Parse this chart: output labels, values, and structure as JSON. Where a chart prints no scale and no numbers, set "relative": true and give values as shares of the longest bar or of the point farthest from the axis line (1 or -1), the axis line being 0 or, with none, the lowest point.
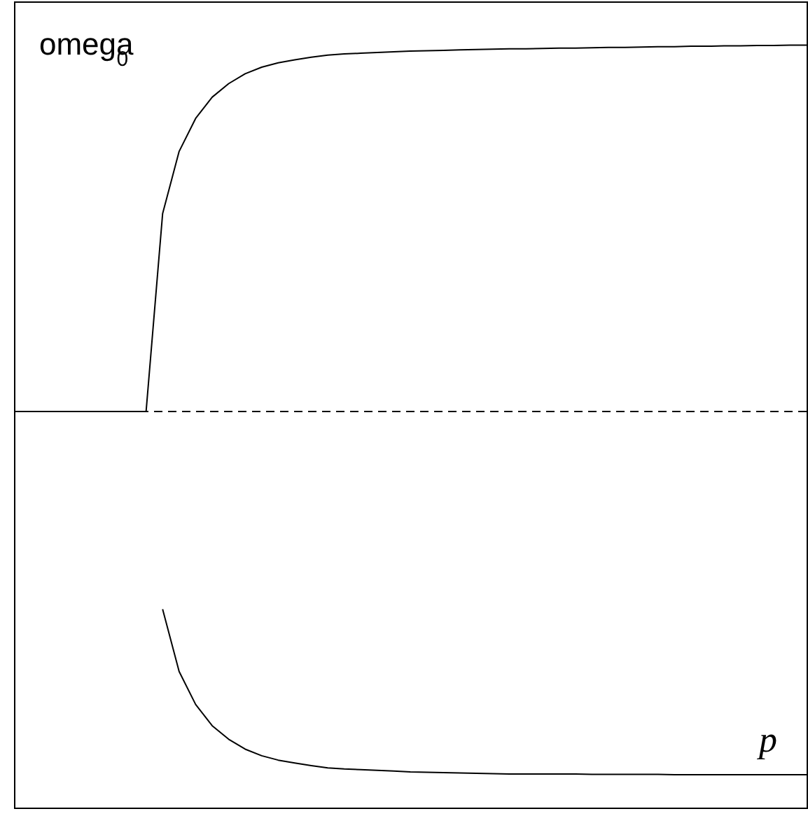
{
  "chart_data": {
    "type": "line",
    "relative": true,
    "xlabel": "p",
    "ylabel": "omega$_{0}$",
    "ref_lines": [
      {
        "axis": "y",
        "value": 0,
        "line_style": "dashed",
        "color": "#000000"
      }
    ],
    "categories": [
      null,
      null,
      null,
      null,
      null,
      null,
      null,
      null,
      null,
      null,
      null,
      null,
      null,
      null,
      null,
      null,
      null,
      null,
      null,
      null,
      null,
      null,
      null,
      null,
      null,
      null,
      null,
      null,
      null,
      null,
      null,
      null,
      null,
      null,
      null,
      null,
      null,
      null,
      null,
      null,
      null,
      null,
      null,
      null,
      null,
      null,
      null,
      null,
      null
    ],
    "series": [
      {
        "color": "#000000",
        "values": [
          0,
          0,
          0,
          0,
          0,
          0,
          0,
          0,
          0,
          null,
          null,
          null,
          null,
          null,
          null,
          null,
          null,
          null,
          null,
          null,
          null,
          null,
          null,
          null,
          null,
          null,
          null,
          null,
          null,
          null,
          null,
          null,
          null,
          null,
          null,
          null,
          null,
          null,
          null,
          null,
          null,
          null,
          null,
          null,
          null,
          null,
          null,
          null,
          null
        ]
      },
      {
        "color": "#000000",
        "values": [
          null,
          null,
          null,
          null,
          null,
          null,
          null,
          null,
          0,
          0.54,
          0.71,
          0.8,
          0.858,
          0.895,
          0.922,
          0.94,
          0.952,
          0.96,
          0.967,
          0.973,
          0.976,
          0.978,
          0.98,
          0.982,
          0.984,
          0.985,
          0.986,
          0.987,
          0.988,
          0.989,
          0.99,
          0.99,
          0.991,
          0.992,
          0.992,
          0.993,
          0.994,
          0.994,
          0.995,
          0.996,
          0.996,
          0.997,
          0.997,
          0.998,
          0.998,
          0.999,
          0.999,
          1,
          1
        ]
      },
      {
        "color": "#000000",
        "values": [
          null,
          null,
          null,
          null,
          null,
          null,
          null,
          null,
          null,
          -0.54,
          -0.71,
          -0.8,
          -0.858,
          -0.895,
          -0.922,
          -0.94,
          -0.952,
          -0.96,
          -0.967,
          -0.973,
          -0.976,
          -0.978,
          -0.98,
          -0.982,
          -0.984,
          -0.985,
          -0.986,
          -0.987,
          -0.988,
          -0.989,
          -0.99,
          -0.99,
          -0.99,
          -0.99,
          -0.99,
          -0.991,
          -0.991,
          -0.991,
          -0.991,
          -0.991,
          -0.992,
          -0.992,
          -0.992,
          -0.992,
          -0.992,
          -0.992,
          -0.992,
          -0.992,
          -0.992
        ]
      }
    ]
  }
}
